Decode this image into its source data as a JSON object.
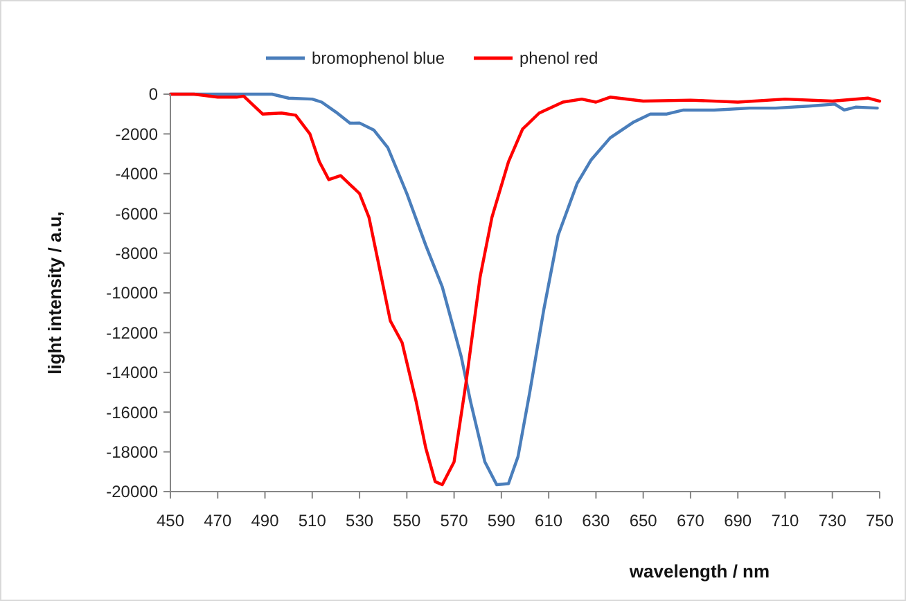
{
  "chart_data": {
    "type": "line",
    "xlabel": "wavelength / nm",
    "ylabel": "light intensity / a.u,",
    "xlim": [
      450,
      750
    ],
    "xticks": [
      450,
      470,
      490,
      510,
      530,
      550,
      570,
      590,
      610,
      630,
      650,
      670,
      690,
      710,
      730,
      750
    ],
    "ylim": [
      -20000,
      0
    ],
    "yticks": [
      -20000,
      -18000,
      -16000,
      -14000,
      -12000,
      -10000,
      -8000,
      -6000,
      -4000,
      -2000,
      0
    ],
    "grid": false,
    "legend": "top",
    "marker": "none",
    "line_style": "solid",
    "series": [
      {
        "name": "bromophenol blue",
        "color": "#4a7ebb",
        "x": [
          450,
          470,
          493,
          500,
          510,
          514,
          520,
          526,
          530,
          536,
          542,
          550,
          558,
          565,
          573,
          577,
          583,
          588,
          593,
          597,
          602,
          608,
          614,
          622,
          628,
          636,
          646,
          653,
          660,
          667,
          680,
          695,
          706,
          720,
          731,
          735,
          740,
          749
        ],
        "values": [
          0,
          0,
          0,
          -200,
          -250,
          -400,
          -900,
          -1460,
          -1450,
          -1800,
          -2700,
          -5000,
          -7600,
          -9700,
          -13200,
          -15500,
          -18500,
          -19650,
          -19600,
          -18250,
          -15000,
          -10800,
          -7100,
          -4500,
          -3300,
          -2200,
          -1400,
          -1000,
          -1000,
          -800,
          -800,
          -700,
          -700,
          -600,
          -500,
          -800,
          -650,
          -700
        ]
      },
      {
        "name": "phenol red",
        "color": "#ff0000",
        "x": [
          450,
          460,
          470,
          478,
          481,
          489,
          497,
          503,
          509,
          513,
          517,
          522,
          530,
          534,
          538,
          543,
          548,
          554,
          558,
          562,
          565,
          570,
          575,
          581,
          586,
          593,
          599,
          606,
          616,
          624,
          630,
          636,
          650,
          670,
          690,
          710,
          730,
          745,
          750
        ],
        "values": [
          0,
          0,
          -150,
          -150,
          -100,
          -1000,
          -950,
          -1060,
          -2000,
          -3400,
          -4300,
          -4100,
          -5000,
          -6200,
          -8500,
          -11400,
          -12500,
          -15500,
          -17800,
          -19500,
          -19650,
          -18500,
          -14550,
          -9200,
          -6200,
          -3400,
          -1750,
          -950,
          -400,
          -250,
          -400,
          -150,
          -350,
          -300,
          -400,
          -250,
          -350,
          -200,
          -350
        ]
      }
    ]
  }
}
